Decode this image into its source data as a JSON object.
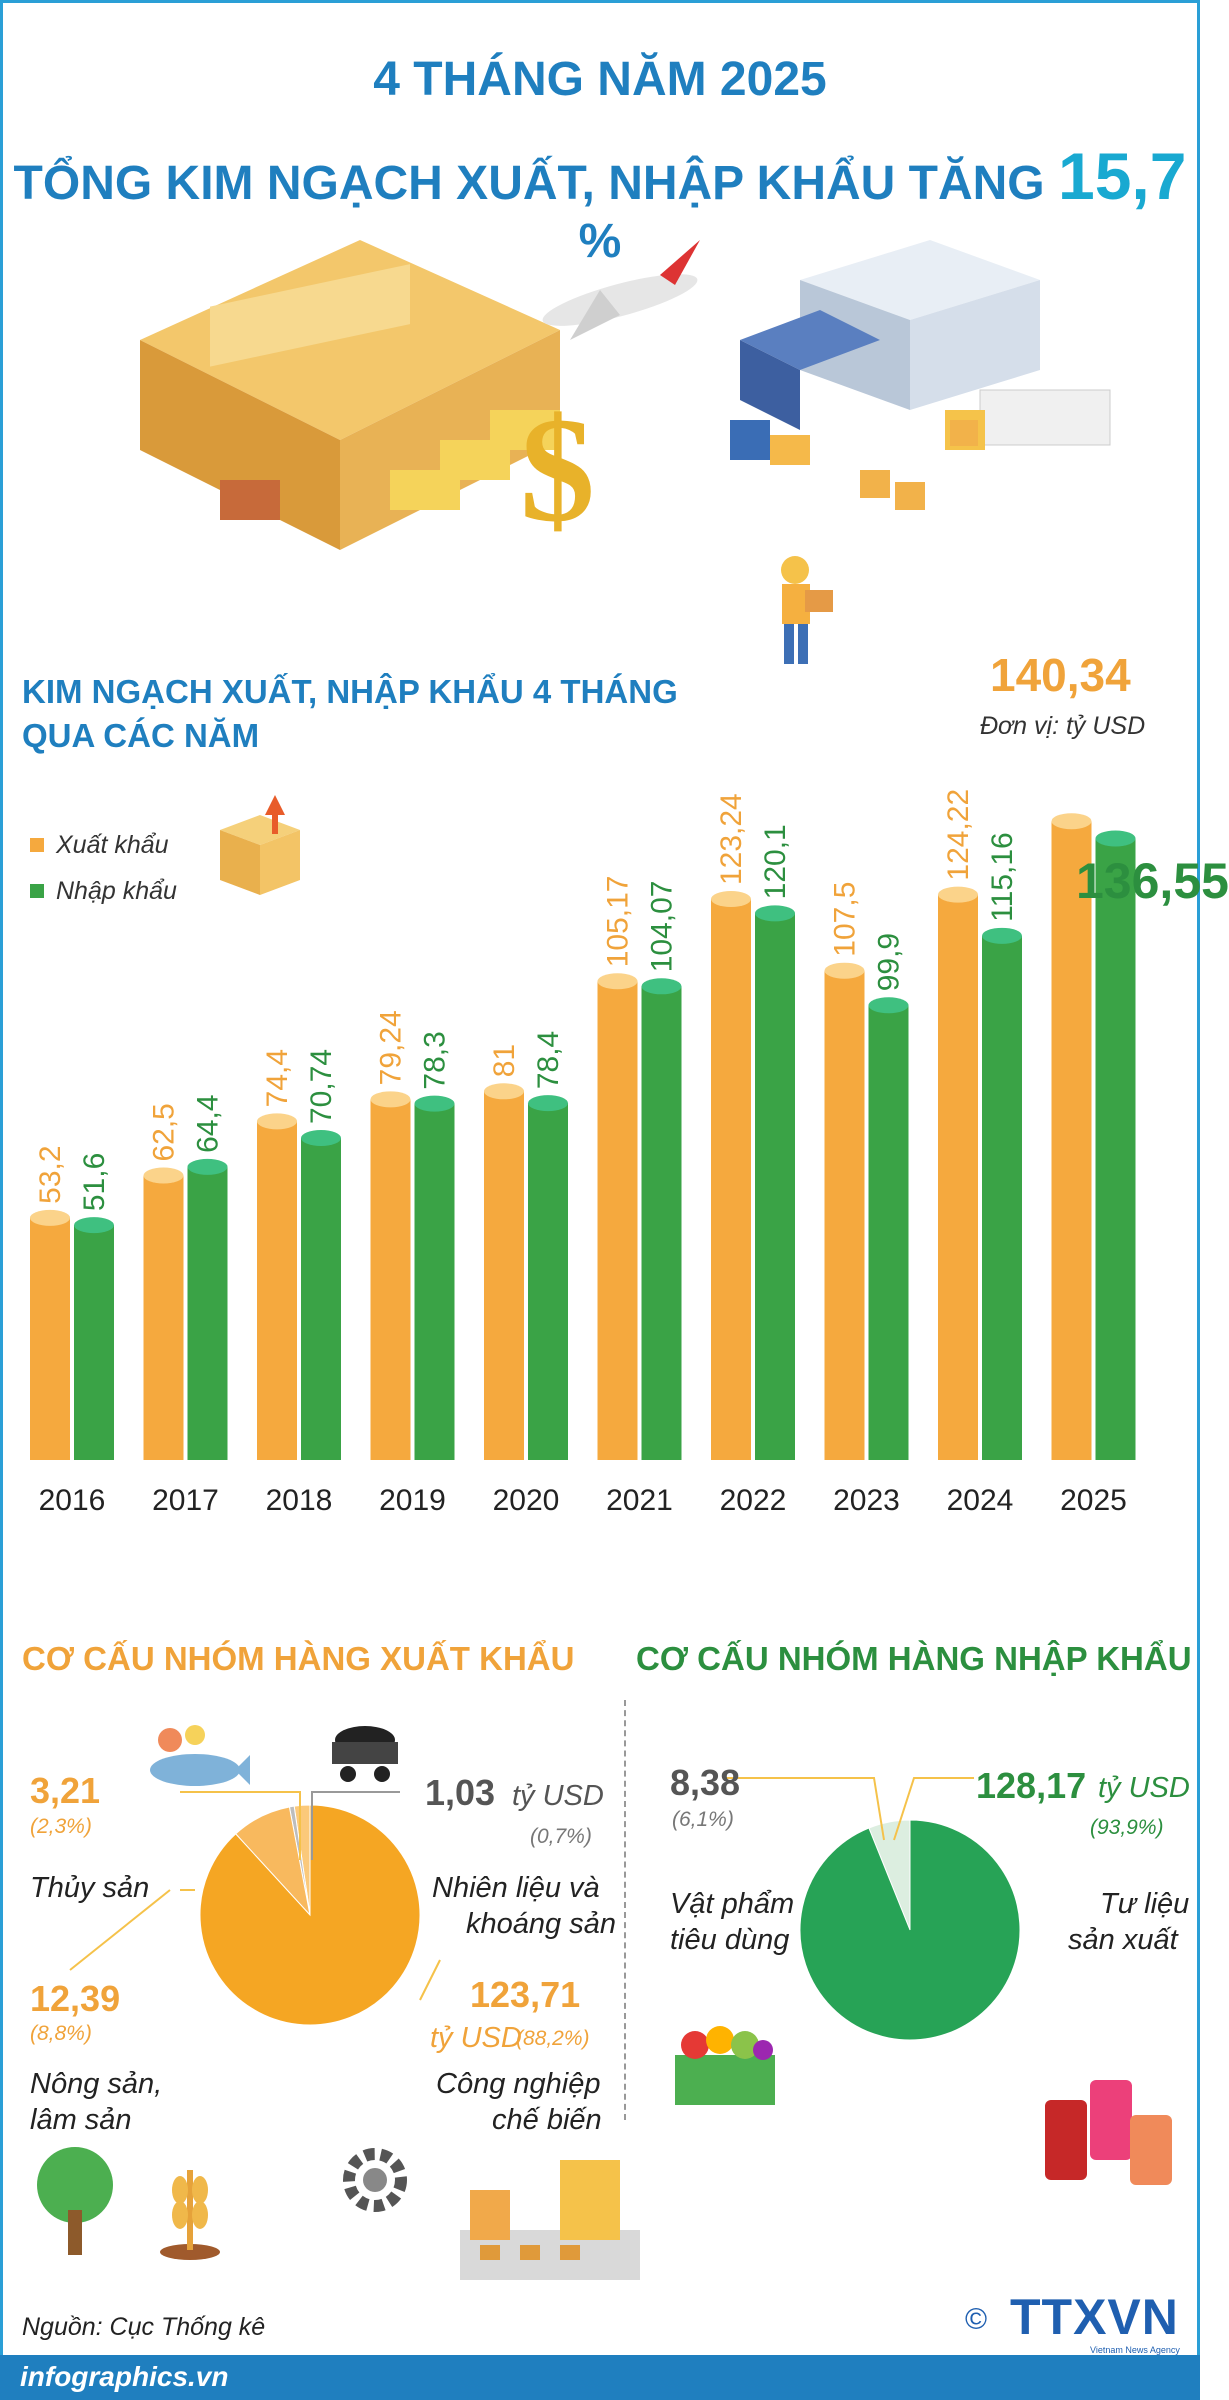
{
  "header": {
    "line1": "4 THÁNG NĂM 2025",
    "line2_prefix": "TỔNG KIM NGẠCH XUẤT, NHẬP KHẨU TĂNG ",
    "line2_value": "15,7",
    "line2_suffix": " %"
  },
  "chart_section": {
    "title": "KIM NGẠCH XUẤT, NHẬP KHẨU 4 THÁNG QUA CÁC NĂM",
    "unit": "Đơn vị: tỷ USD",
    "legend": [
      {
        "label": "Xuất khẩu",
        "color": "#f5a93e"
      },
      {
        "label": "Nhập khẩu",
        "color": "#3aa346"
      }
    ]
  },
  "chart_data": {
    "type": "bar",
    "categories": [
      "2016",
      "2017",
      "2018",
      "2019",
      "2020",
      "2021",
      "2022",
      "2023",
      "2024",
      "2025"
    ],
    "series": [
      {
        "name": "Xuất khẩu",
        "values": [
          53.2,
          62.5,
          74.4,
          79.24,
          81,
          105.17,
          123.24,
          107.5,
          124.22,
          140.34
        ],
        "labels": [
          "53,2",
          "62,5",
          "74,4",
          "79,24",
          "81",
          "105,17",
          "123,24",
          "107,5",
          "124,22",
          "140,34"
        ]
      },
      {
        "name": "Nhập khẩu",
        "values": [
          51.6,
          64.4,
          70.74,
          78.3,
          78.4,
          104.07,
          120.1,
          99.9,
          115.16,
          136.55
        ],
        "labels": [
          "51,6",
          "64,4",
          "70,74",
          "78,3",
          "78,4",
          "104,07",
          "120,1",
          "99,9",
          "115,16",
          "136,55"
        ]
      }
    ],
    "colors": {
      "export": "#f5a93e",
      "import": "#3aa346",
      "export_top": "#fbd38a",
      "import_top": "#3fc080"
    },
    "ylim": [
      0,
      145
    ]
  },
  "export_structure": {
    "title": "CƠ CẤU NHÓM HÀNG XUẤT KHẨU",
    "items": [
      {
        "value": "3,21",
        "pct": "(2,3%)",
        "label": "Thủy sản",
        "share": 2.3
      },
      {
        "value": "1,03",
        "unit": "tỷ USD",
        "pct": "(0,7%)",
        "label1": "Nhiên liệu và",
        "label2": "khoáng sản",
        "share": 0.7
      },
      {
        "value": "12,39",
        "pct": "(8,8%)",
        "label1": "Nông sản,",
        "label2": "lâm sản",
        "share": 8.8
      },
      {
        "value": "123,71",
        "unit": "tỷ USD",
        "pct": "(88,2%)",
        "label1": "Công nghiệp",
        "label2": "chế biến",
        "share": 88.2
      }
    ]
  },
  "import_structure": {
    "title": "CƠ CẤU NHÓM HÀNG NHẬP KHẨU",
    "items": [
      {
        "value": "8,38",
        "pct": "(6,1%)",
        "label1": "Vật phẩm",
        "label2": "tiêu dùng",
        "share": 6.1
      },
      {
        "value": "128,17",
        "unit": "tỷ USD",
        "pct": "(93,9%)",
        "label1": "Tư liệu",
        "label2": "sản xuất",
        "share": 93.9
      }
    ]
  },
  "footer": {
    "source": "Nguồn: Cục Thống kê",
    "site": "infographics.vn",
    "logo": "TTXVN",
    "logo_sub": "Vietnam News Agency",
    "copyright": "©"
  }
}
